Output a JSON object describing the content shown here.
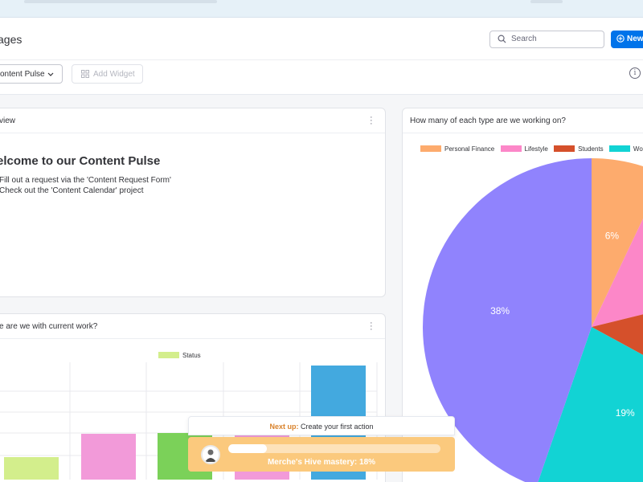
{
  "header": {
    "title": "ages",
    "search_placeholder": "Search",
    "new_label": "New"
  },
  "toolbar": {
    "dashboard_select": "ontent Pulse",
    "add_widget": "Add Widget",
    "info_glyph": "i"
  },
  "overview_widget": {
    "title": "view",
    "heading": "elcome to our Content Pulse",
    "bullets": [
      "Fill out a request via the 'Content Request Form'",
      "Check out the 'Content Calendar' project"
    ]
  },
  "pie_widget": {
    "title": "How many of each type are we working on?",
    "legend": [
      "Personal Finance",
      "Lifestyle",
      "Students",
      "Work"
    ]
  },
  "status_widget": {
    "title": "e are we with current work?",
    "legend_label": "Status"
  },
  "toast": {
    "next_up_label": "Next up:",
    "next_up_text": "Create your first action",
    "mastery_text": "Merche's Hive mastery: 18%",
    "progress": 0.18
  },
  "colors": {
    "accent": "#0073ea",
    "personal_finance": "#fdab6d",
    "lifestyle": "#fc87c8",
    "students": "#d5502b",
    "work": "#12d3d4",
    "remaining": "#9083fd",
    "status_green_light": "#d3ee8c",
    "status_pink": "#f29ad9",
    "status_green": "#7bd159",
    "status_blue": "#43a9df"
  },
  "chart_data": [
    {
      "type": "pie",
      "title": "How many of each type are we working on?",
      "categories": [
        "Personal Finance",
        "Lifestyle",
        "Students",
        "Work",
        ""
      ],
      "values": [
        6,
        12,
        10,
        19,
        38
      ],
      "labels": [
        "6%",
        "",
        "",
        "19%",
        "38%"
      ],
      "colors": [
        "#fdab6d",
        "#fc87c8",
        "#d5502b",
        "#12d3d4",
        "#9083fd"
      ]
    },
    {
      "type": "bar",
      "title": "e are we with current work?",
      "legend": [
        "Status"
      ],
      "values": [
        28,
        57,
        58,
        70,
        142
      ],
      "colors": [
        "#d3ee8c",
        "#f29ad9",
        "#7bd159",
        "#f29ad9",
        "#43a9df"
      ]
    }
  ]
}
